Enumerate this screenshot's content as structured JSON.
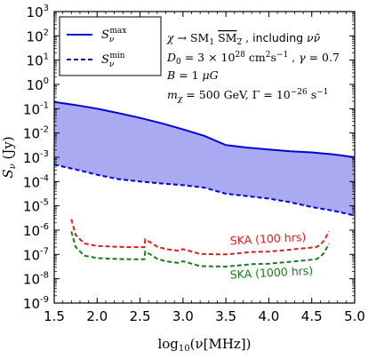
{
  "chart_data": {
    "type": "line",
    "xlabel": "log10(ν[MHz])",
    "ylabel": "Sν (Jy)",
    "xlim": [
      1.5,
      5.0
    ],
    "ylim_log10": [
      -9,
      3
    ],
    "yscale": "log",
    "grid": false,
    "x_ticks": [
      "1.5",
      "2.0",
      "2.5",
      "3.0",
      "3.5",
      "4.0",
      "4.5",
      "5.0"
    ],
    "y_ticks": [
      {
        "base": "10",
        "exp": "3"
      },
      {
        "base": "10",
        "exp": "2"
      },
      {
        "base": "10",
        "exp": "1"
      },
      {
        "base": "10",
        "exp": "0"
      },
      {
        "base": "10",
        "exp": "-1"
      },
      {
        "base": "10",
        "exp": "-2"
      },
      {
        "base": "10",
        "exp": "-3"
      },
      {
        "base": "10",
        "exp": "-4"
      },
      {
        "base": "10",
        "exp": "-5"
      },
      {
        "base": "10",
        "exp": "-6"
      },
      {
        "base": "10",
        "exp": "-7"
      },
      {
        "base": "10",
        "exp": "-8"
      },
      {
        "base": "10",
        "exp": "-9"
      }
    ],
    "band_color": "#aaaaf2",
    "legend": {
      "position": "top-left",
      "entries": [
        {
          "label": "Sν^max",
          "style": "solid",
          "color": "#0000dd"
        },
        {
          "label": "Sν^min",
          "style": "dashed",
          "color": "#0000dd"
        }
      ]
    },
    "annotations": [
      "χ → SM1 SM2 , including νν̄",
      "D0 = 3 × 10^28 cm² s⁻¹ , γ = 0.7",
      "B = 1 μG",
      "mχ = 500 GeV, Γ = 10⁻²⁶ s⁻¹"
    ],
    "series": [
      {
        "name": "Sν^max",
        "color": "#0000dd",
        "style": "solid",
        "x": [
          1.5,
          1.75,
          2.0,
          2.25,
          2.5,
          2.75,
          3.0,
          3.25,
          3.5,
          3.75,
          4.0,
          4.25,
          4.5,
          4.75,
          5.0
        ],
        "log10_y": [
          -0.72,
          -0.85,
          -1.0,
          -1.18,
          -1.38,
          -1.6,
          -1.85,
          -2.12,
          -2.5,
          -2.6,
          -2.68,
          -2.75,
          -2.8,
          -2.88,
          -3.0
        ]
      },
      {
        "name": "Sν^min",
        "color": "#0000dd",
        "style": "dashed",
        "x": [
          1.5,
          1.75,
          2.0,
          2.25,
          2.5,
          2.75,
          3.0,
          3.25,
          3.5,
          3.75,
          4.0,
          4.25,
          4.5,
          4.75,
          5.0
        ],
        "log10_y": [
          -3.3,
          -3.5,
          -3.72,
          -3.9,
          -4.0,
          -4.08,
          -4.15,
          -4.25,
          -4.5,
          -4.6,
          -4.7,
          -4.85,
          -5.05,
          -5.2,
          -5.4
        ]
      },
      {
        "name": "SKA (100 hrs)",
        "color": "#e8191c",
        "style": "dashed",
        "x": [
          1.7,
          1.75,
          1.85,
          2.0,
          2.2,
          2.4,
          2.55,
          2.56,
          2.62,
          2.7,
          2.8,
          2.95,
          3.0,
          3.2,
          3.5,
          3.8,
          4.0,
          4.2,
          4.4,
          4.55,
          4.6,
          4.65,
          4.7
        ],
        "log10_y": [
          -5.55,
          -6.2,
          -6.55,
          -6.65,
          -6.68,
          -6.7,
          -6.7,
          -6.38,
          -6.5,
          -6.68,
          -6.78,
          -6.85,
          -6.78,
          -6.98,
          -7.0,
          -6.9,
          -6.88,
          -6.82,
          -6.75,
          -6.7,
          -6.6,
          -6.4,
          -6.05
        ]
      },
      {
        "name": "SKA (1000 hrs)",
        "color": "#128012",
        "style": "dashed",
        "x": [
          1.7,
          1.75,
          1.85,
          2.0,
          2.2,
          2.4,
          2.55,
          2.56,
          2.62,
          2.7,
          2.8,
          2.95,
          3.0,
          3.2,
          3.5,
          3.8,
          4.0,
          4.2,
          4.4,
          4.55,
          4.6,
          4.65,
          4.7
        ],
        "log10_y": [
          -6.05,
          -6.7,
          -7.05,
          -7.15,
          -7.18,
          -7.2,
          -7.2,
          -6.88,
          -7.0,
          -7.18,
          -7.28,
          -7.35,
          -7.28,
          -7.48,
          -7.5,
          -7.4,
          -7.38,
          -7.32,
          -7.25,
          -7.2,
          -7.1,
          -6.9,
          -6.55
        ]
      }
    ],
    "curve_labels": [
      {
        "text": "SKA (100 hrs)",
        "color": "#e8191c",
        "x": 3.55,
        "log10_y": -6.6
      },
      {
        "text": "SKA (1000 hrs)",
        "color": "#128012",
        "x": 3.55,
        "log10_y": -8.0
      }
    ]
  }
}
